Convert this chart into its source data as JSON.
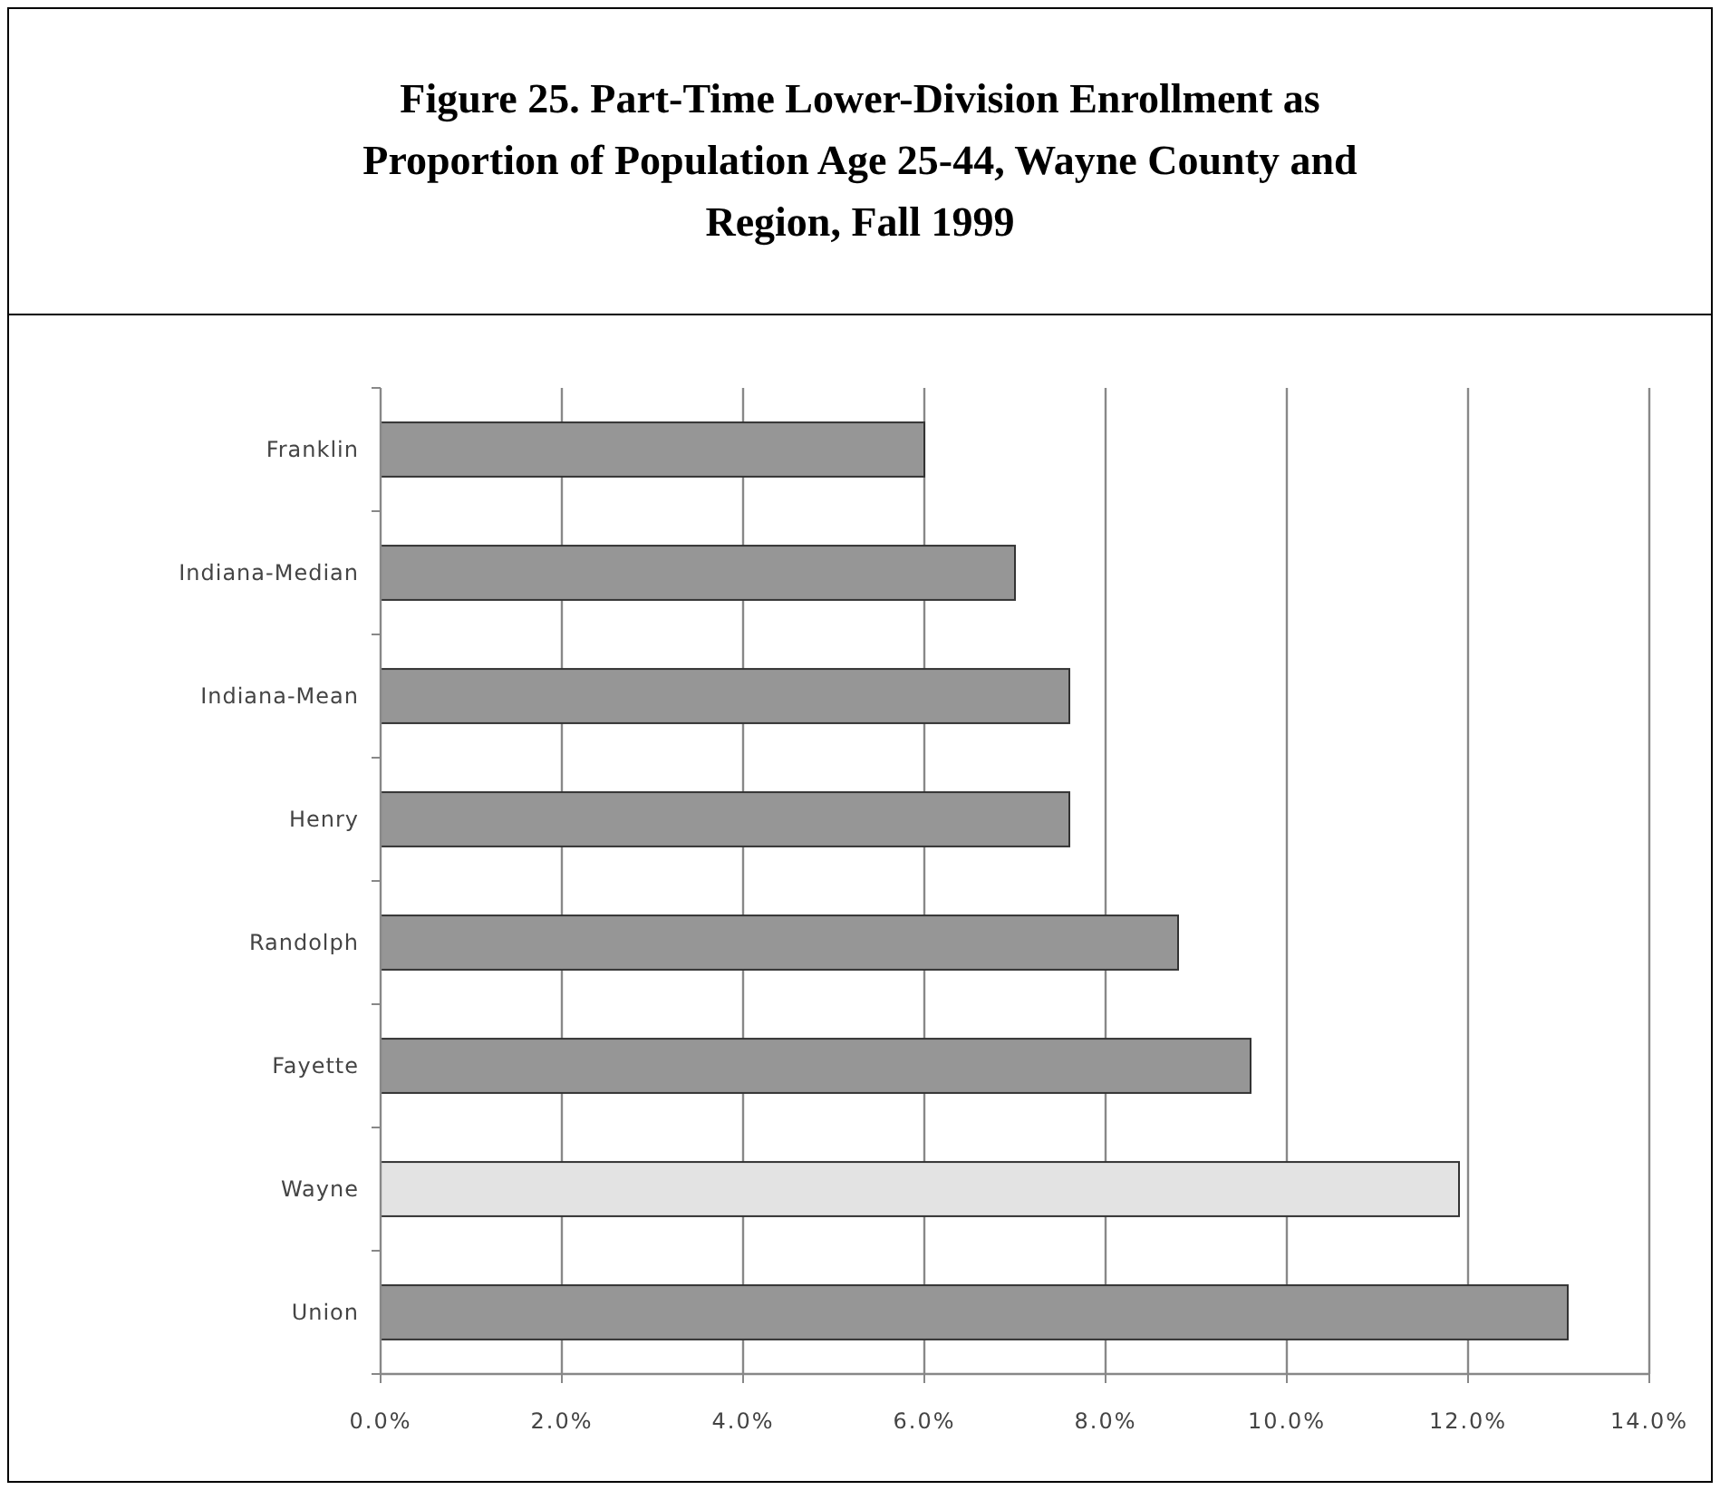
{
  "chart_data": {
    "type": "bar",
    "orientation": "horizontal",
    "title": "Figure 25.  Part-Time Lower-Division Enrollment as Proportion of Population Age 25-44, Wayne County and Region, Fall 1999",
    "categories": [
      "Franklin",
      "Indiana-Median",
      "Indiana-Mean",
      "Henry",
      "Randolph",
      "Fayette",
      "Wayne",
      "Union"
    ],
    "values": [
      6.0,
      7.0,
      7.6,
      7.6,
      8.8,
      9.6,
      11.9,
      13.1
    ],
    "colors": [
      "#969696",
      "#969696",
      "#969696",
      "#969696",
      "#969696",
      "#969696",
      "#e3e3e3",
      "#969696"
    ],
    "xlim": [
      0,
      14
    ],
    "xticks": [
      {
        "value": 0,
        "label": "0.0%"
      },
      {
        "value": 2,
        "label": "2.0%"
      },
      {
        "value": 4,
        "label": "4.0%"
      },
      {
        "value": 6,
        "label": "6.0%"
      },
      {
        "value": 8,
        "label": "8.0%"
      },
      {
        "value": 10,
        "label": "10.0%"
      },
      {
        "value": 12,
        "label": "12.0%"
      },
      {
        "value": 14,
        "label": "14.0%"
      }
    ],
    "grid": "x"
  }
}
